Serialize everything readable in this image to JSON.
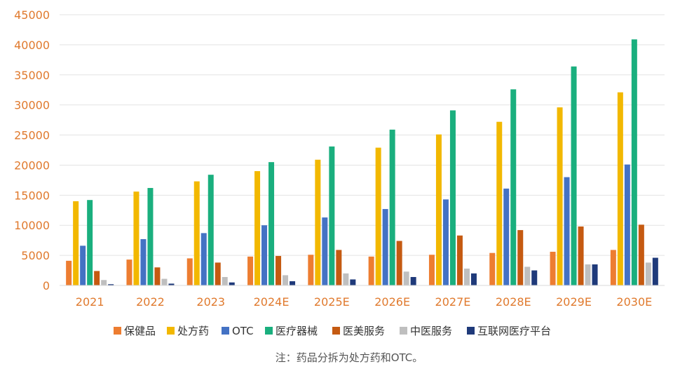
{
  "chart_data": {
    "type": "bar",
    "categories": [
      "2021",
      "2022",
      "2023",
      "2024E",
      "2025E",
      "2026E",
      "2027E",
      "2028E",
      "2029E",
      "2030E"
    ],
    "series": [
      {
        "name": "保健品",
        "color": "#ed7d31",
        "values": [
          4100,
          4300,
          4500,
          4800,
          5100,
          4800,
          5100,
          5400,
          5600,
          5900
        ]
      },
      {
        "name": "处方药",
        "color": "#f2b800",
        "values": [
          14000,
          15600,
          17300,
          19000,
          20900,
          22900,
          25100,
          27200,
          29600,
          32100
        ]
      },
      {
        "name": "OTC",
        "color": "#4472c4",
        "values": [
          6600,
          7700,
          8700,
          10000,
          11300,
          12700,
          14300,
          16100,
          18000,
          20100
        ]
      },
      {
        "name": "医疗器械",
        "color": "#1aaf7e",
        "values": [
          14200,
          16200,
          18400,
          20500,
          23100,
          25900,
          29100,
          32600,
          36400,
          40900
        ]
      },
      {
        "name": "医美服务",
        "color": "#c55a11",
        "values": [
          2400,
          3000,
          3800,
          4900,
          5900,
          7400,
          8300,
          9200,
          9800,
          10100
        ]
      },
      {
        "name": "中医服务",
        "color": "#bfbfbf",
        "values": [
          900,
          1100,
          1400,
          1700,
          2000,
          2300,
          2800,
          3100,
          3500,
          3800
        ]
      },
      {
        "name": "互联网医疗平台",
        "color": "#1f3a7a",
        "values": [
          200,
          300,
          500,
          700,
          1000,
          1400,
          2000,
          2500,
          3500,
          4600
        ]
      }
    ],
    "yticks": [
      "0",
      "5000",
      "10000",
      "15000",
      "20000",
      "25000",
      "30000",
      "35000",
      "40000",
      "45000"
    ],
    "ylim": [
      0,
      45000
    ],
    "grid": true,
    "legend_position": "bottom",
    "note": "注：药品分拆为处方药和OTC。"
  }
}
